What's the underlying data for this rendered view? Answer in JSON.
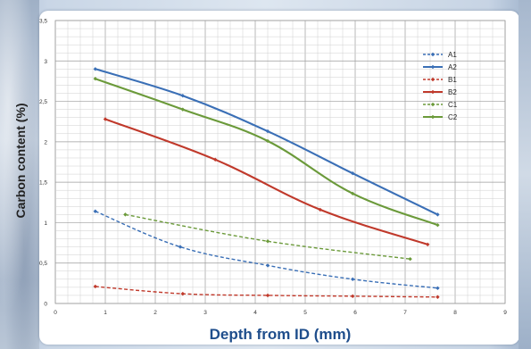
{
  "chart_data": {
    "type": "line",
    "title": "",
    "xlabel": "Depth from ID (mm)",
    "ylabel": "Carbon content (%)",
    "xlim": [
      0,
      9
    ],
    "ylim": [
      0,
      3.5
    ],
    "xticks": [
      "0",
      "1",
      "2",
      "3",
      "4",
      "5",
      "6",
      "7",
      "8",
      "9"
    ],
    "yticks": [
      "0",
      "0,5",
      "1",
      "1,5",
      "2",
      "2,5",
      "3",
      "3,5"
    ],
    "grid": true,
    "legend_position": "top-right",
    "series": [
      {
        "name": "A1",
        "color": "#3a6fb6",
        "dashed": true,
        "x": [
          0.8,
          2.5,
          4.25,
          5.95,
          7.65
        ],
        "y": [
          1.14,
          0.7,
          0.47,
          0.3,
          0.19
        ]
      },
      {
        "name": "A2",
        "color": "#3a6fb6",
        "dashed": false,
        "x": [
          0.8,
          2.55,
          4.25,
          5.95,
          7.65
        ],
        "y": [
          2.9,
          2.57,
          2.13,
          1.61,
          1.1
        ]
      },
      {
        "name": "B1",
        "color": "#c0392b",
        "dashed": true,
        "x": [
          0.8,
          2.55,
          4.25,
          5.95,
          7.65
        ],
        "y": [
          0.21,
          0.12,
          0.1,
          0.09,
          0.08
        ]
      },
      {
        "name": "B2",
        "color": "#c0392b",
        "dashed": false,
        "x": [
          1.0,
          3.2,
          5.3,
          7.45
        ],
        "y": [
          2.28,
          1.78,
          1.16,
          0.73
        ]
      },
      {
        "name": "C1",
        "color": "#6b9a3a",
        "dashed": true,
        "x": [
          1.4,
          4.25,
          7.1
        ],
        "y": [
          1.1,
          0.77,
          0.55
        ]
      },
      {
        "name": "C2",
        "color": "#6b9a3a",
        "dashed": false,
        "x": [
          0.8,
          2.55,
          4.25,
          5.95,
          7.65
        ],
        "y": [
          2.78,
          2.4,
          2.01,
          1.36,
          0.97
        ]
      }
    ]
  }
}
